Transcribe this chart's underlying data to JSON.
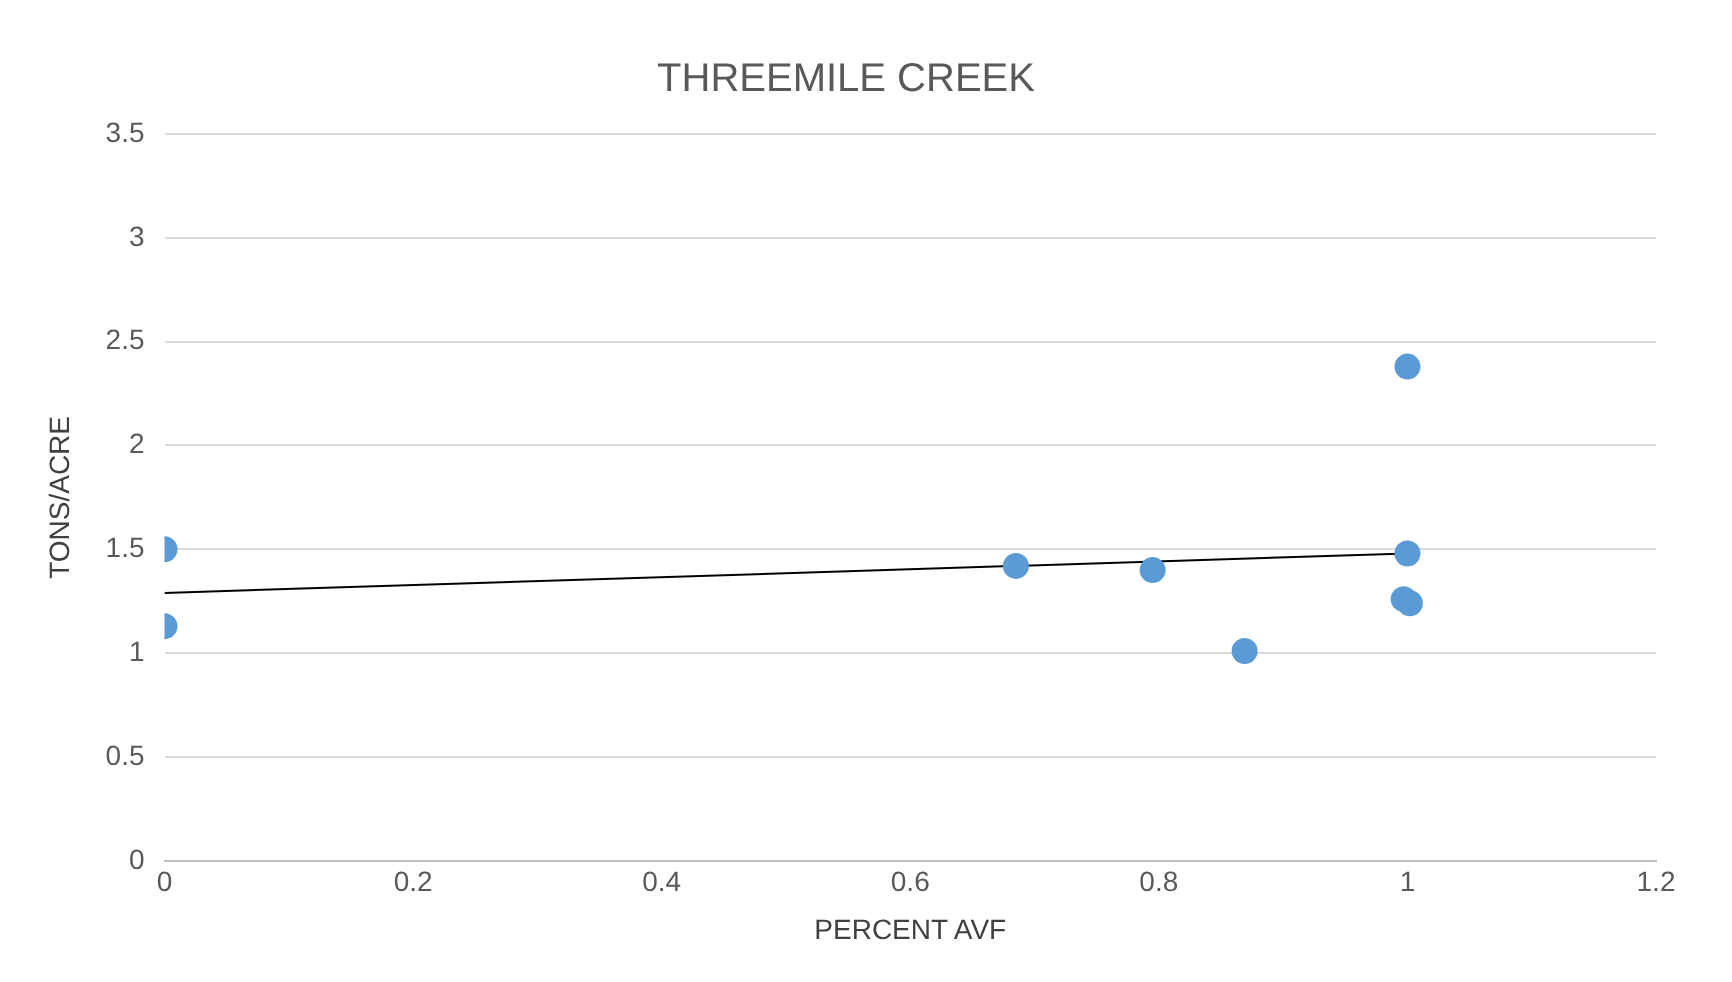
{
  "chart_data": {
    "type": "scatter",
    "title": "THREEMILE CREEK",
    "xlabel": "PERCENT AVF",
    "ylabel": "TONS/ACRE",
    "xlim": [
      0,
      1.2
    ],
    "xticks": [
      0,
      0.2,
      0.4,
      0.6,
      0.8,
      1,
      1.2
    ],
    "ylim": [
      0,
      3.5
    ],
    "yticks": [
      0,
      0.5,
      1,
      1.5,
      2,
      2.5,
      3,
      3.5
    ],
    "grid": "y",
    "legend": false,
    "marker": "circle",
    "series": [
      {
        "color": "#5b9bd5",
        "x": [
          0,
          0,
          0.685,
          0.795,
          0.869,
          1,
          1,
          0.997,
          1.002
        ],
        "values": [
          1.5,
          1.13,
          1.42,
          1.4,
          1.01,
          2.38,
          1.48,
          1.26,
          1.24
        ]
      },
      {
        "type": "line",
        "color": "#000000",
        "x": [
          0,
          1
        ],
        "values": [
          1.29,
          1.48
        ],
        "marker": "none"
      }
    ]
  }
}
